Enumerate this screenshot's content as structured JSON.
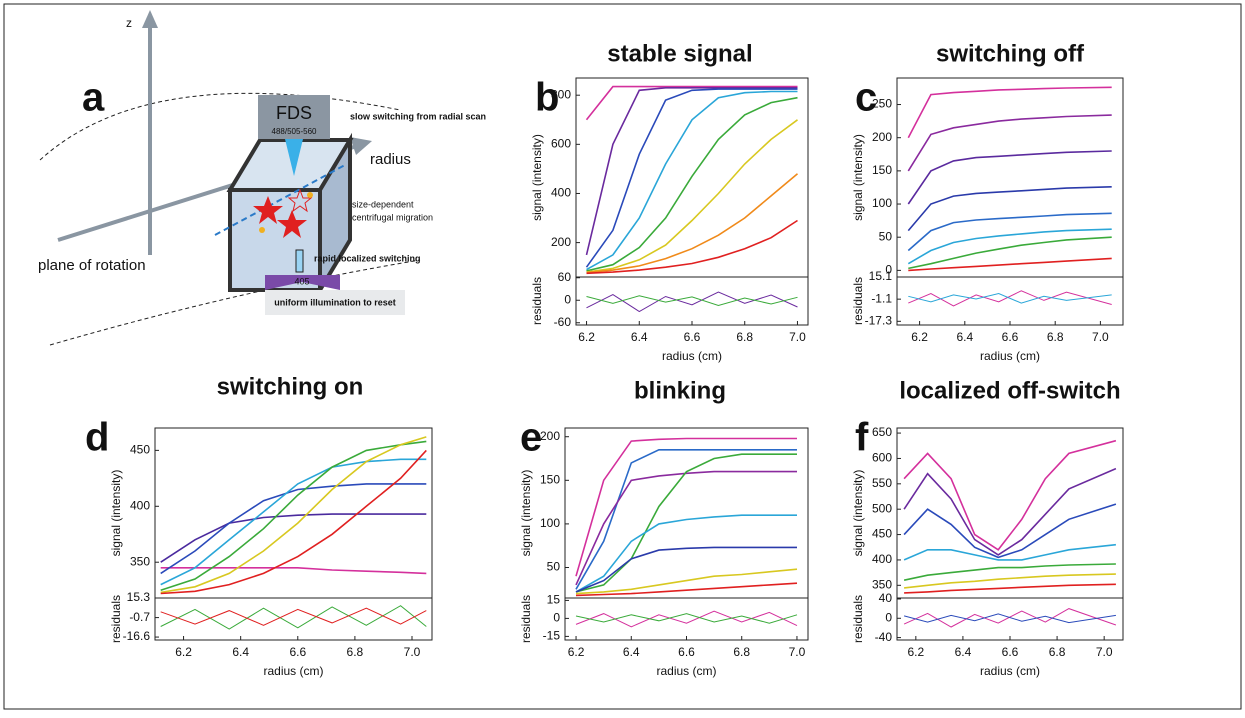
{
  "diagram": {
    "label": "a",
    "z": "z",
    "fds": "FDS",
    "wavelengths": "488/505-560",
    "slow": "slow switching from radial scan",
    "radius": "radius",
    "size1": "size-dependent",
    "size2": "centrifugal migration",
    "rapid": "rapid localized switching",
    "laser": "405",
    "uniform": "uniform illumination to reset",
    "plane": "plane of rotation"
  },
  "chart_data": [
    {
      "type": "line",
      "panel_label": "b",
      "title": "stable signal",
      "xlabel": "radius (cm)",
      "ylabel": "signal (intensity)",
      "residual_label": "residuals",
      "x": [
        6.2,
        6.3,
        6.4,
        6.5,
        6.6,
        6.7,
        6.8,
        6.9,
        7.0
      ],
      "xlim": [
        6.16,
        7.04
      ],
      "xticks": [
        6.2,
        6.4,
        6.6,
        6.8,
        {
          "value": 7,
          "label": "7.0"
        }
      ],
      "ylim": [
        60,
        870
      ],
      "yticks": [
        200,
        400,
        600,
        800
      ],
      "series": [
        {
          "color": "#d4309c",
          "values": [
            700,
            835,
            835,
            835,
            835,
            835,
            835,
            835,
            835
          ]
        },
        {
          "color": "#6a2a9e",
          "values": [
            150,
            600,
            820,
            830,
            830,
            830,
            830,
            830,
            830
          ]
        },
        {
          "color": "#2a4aba",
          "values": [
            100,
            250,
            560,
            780,
            820,
            825,
            825,
            825,
            825
          ]
        },
        {
          "color": "#2aa6d8",
          "values": [
            90,
            150,
            300,
            520,
            700,
            790,
            810,
            815,
            815
          ]
        },
        {
          "color": "#3aaa3a",
          "values": [
            85,
            110,
            180,
            300,
            470,
            620,
            720,
            770,
            790
          ]
        },
        {
          "color": "#d8c820",
          "values": [
            80,
            95,
            130,
            190,
            290,
            400,
            520,
            620,
            700
          ]
        },
        {
          "color": "#f08a1a",
          "values": [
            78,
            88,
            105,
            135,
            175,
            230,
            300,
            390,
            480
          ]
        },
        {
          "color": "#e02020",
          "values": [
            75,
            80,
            88,
            100,
            115,
            140,
            175,
            220,
            290
          ]
        }
      ],
      "residual_ylim": [
        -66,
        62
      ],
      "residual_yticks": [
        60,
        0,
        -60
      ],
      "residuals": [
        {
          "color": "#6a2a9e",
          "values": [
            -20,
            15,
            -30,
            10,
            -12,
            22,
            -8,
            14,
            -18
          ]
        },
        {
          "color": "#3aaa3a",
          "values": [
            10,
            -8,
            12,
            -5,
            9,
            -14,
            6,
            -10,
            8
          ]
        }
      ]
    },
    {
      "type": "line",
      "panel_label": "c",
      "title": "switching off",
      "xlabel": "radius (cm)",
      "ylabel": "signal (intensity)",
      "residual_label": "residuals",
      "x": [
        6.15,
        6.25,
        6.35,
        6.45,
        6.55,
        6.65,
        6.75,
        6.85,
        7.05
      ],
      "xlim": [
        6.1,
        7.1
      ],
      "xticks": [
        6.2,
        6.4,
        6.6,
        6.8,
        {
          "value": 7,
          "label": "7.0"
        }
      ],
      "ylim": [
        -10,
        290
      ],
      "yticks": [
        0,
        50,
        100,
        150,
        200,
        250
      ],
      "series": [
        {
          "color": "#d4309c",
          "values": [
            200,
            265,
            268,
            270,
            272,
            273,
            274,
            275,
            276
          ]
        },
        {
          "color": "#8a2a9e",
          "values": [
            150,
            205,
            215,
            220,
            225,
            228,
            230,
            232,
            234
          ]
        },
        {
          "color": "#5a2a9e",
          "values": [
            100,
            150,
            165,
            170,
            172,
            174,
            176,
            178,
            180
          ]
        },
        {
          "color": "#2a3aaa",
          "values": [
            60,
            100,
            112,
            116,
            118,
            120,
            122,
            124,
            126
          ]
        },
        {
          "color": "#2a6ac8",
          "values": [
            30,
            60,
            72,
            76,
            78,
            80,
            82,
            84,
            86
          ]
        },
        {
          "color": "#2aa6d8",
          "values": [
            10,
            30,
            42,
            48,
            52,
            55,
            58,
            60,
            62
          ]
        },
        {
          "color": "#3aaa3a",
          "values": [
            3,
            10,
            18,
            26,
            32,
            38,
            42,
            46,
            50
          ]
        },
        {
          "color": "#e02020",
          "values": [
            0,
            2,
            4,
            6,
            8,
            10,
            12,
            14,
            18
          ]
        }
      ],
      "residual_ylim": [
        -20,
        15.1
      ],
      "residual_yticks": [
        15.1,
        -1.1,
        -17.3
      ],
      "residuals": [
        {
          "color": "#d4309c",
          "values": [
            -4,
            3,
            -6,
            2,
            -3,
            5,
            -2,
            4,
            -5
          ]
        },
        {
          "color": "#2aa6d8",
          "values": [
            1,
            -3,
            2,
            -1,
            3,
            -4,
            1,
            -2,
            2
          ]
        }
      ]
    },
    {
      "type": "line",
      "panel_label": "d",
      "title": "switching on",
      "xlabel": "radius (cm)",
      "ylabel": "signal (intensity)",
      "residual_label": "residuals",
      "x": [
        6.12,
        6.24,
        6.36,
        6.48,
        6.6,
        6.72,
        6.84,
        6.96,
        7.05
      ],
      "xlim": [
        6.1,
        7.07
      ],
      "xticks": [
        6.2,
        6.4,
        6.6,
        6.8,
        {
          "value": 7,
          "label": "7.0"
        }
      ],
      "ylim": [
        318,
        470
      ],
      "yticks": [
        350,
        400,
        450
      ],
      "series": [
        {
          "color": "#d4309c",
          "values": [
            345,
            345,
            345,
            345,
            345,
            343,
            342,
            341,
            340
          ]
        },
        {
          "color": "#4a2a9e",
          "values": [
            350,
            370,
            385,
            390,
            392,
            393,
            393,
            393,
            393
          ]
        },
        {
          "color": "#2a4aba",
          "values": [
            340,
            360,
            385,
            405,
            415,
            418,
            420,
            420,
            420
          ]
        },
        {
          "color": "#2aa6d8",
          "values": [
            330,
            345,
            370,
            395,
            420,
            435,
            440,
            442,
            442
          ]
        },
        {
          "color": "#3aaa3a",
          "values": [
            325,
            335,
            355,
            380,
            410,
            435,
            450,
            455,
            458
          ]
        },
        {
          "color": "#d8c820",
          "values": [
            323,
            328,
            340,
            360,
            385,
            415,
            440,
            455,
            462
          ]
        },
        {
          "color": "#e02020",
          "values": [
            322,
            324,
            330,
            340,
            355,
            375,
            400,
            425,
            450
          ]
        }
      ],
      "residual_ylim": [
        -19,
        15.3
      ],
      "residual_yticks": [
        15.3,
        -0.7,
        -16.6
      ],
      "residuals": [
        {
          "color": "#3aaa3a",
          "values": [
            -8,
            6,
            -10,
            7,
            -9,
            8,
            -7,
            9,
            -8
          ]
        },
        {
          "color": "#e02020",
          "values": [
            4,
            -6,
            5,
            -7,
            6,
            -5,
            7,
            -6,
            5
          ]
        }
      ]
    },
    {
      "type": "line",
      "panel_label": "e",
      "title": "blinking",
      "xlabel": "radius (cm)",
      "ylabel": "signal (intensity)",
      "residual_label": "residuals",
      "x": [
        6.2,
        6.3,
        6.4,
        6.5,
        6.6,
        6.7,
        6.8,
        6.9,
        7.0
      ],
      "xlim": [
        6.16,
        7.04
      ],
      "xticks": [
        6.2,
        6.4,
        6.6,
        6.8,
        {
          "value": 7,
          "label": "7.0"
        }
      ],
      "ylim": [
        15,
        210
      ],
      "yticks": [
        50,
        100,
        150,
        200
      ],
      "series": [
        {
          "color": "#d4309c",
          "values": [
            40,
            150,
            195,
            197,
            198,
            198,
            198,
            198,
            198
          ]
        },
        {
          "color": "#2a6ac8",
          "values": [
            25,
            80,
            170,
            185,
            185,
            185,
            185,
            185,
            185
          ]
        },
        {
          "color": "#8a2a9e",
          "values": [
            30,
            100,
            150,
            155,
            158,
            160,
            160,
            160,
            160
          ]
        },
        {
          "color": "#3aaa3a",
          "values": [
            22,
            30,
            60,
            120,
            160,
            175,
            180,
            180,
            180
          ]
        },
        {
          "color": "#2aa6d8",
          "values": [
            22,
            40,
            80,
            100,
            105,
            108,
            110,
            110,
            110
          ]
        },
        {
          "color": "#2a3aaa",
          "values": [
            22,
            35,
            60,
            70,
            72,
            73,
            73,
            73,
            73
          ]
        },
        {
          "color": "#d8c820",
          "values": [
            20,
            22,
            25,
            30,
            35,
            40,
            42,
            45,
            48
          ]
        },
        {
          "color": "#e02020",
          "values": [
            18,
            19,
            20,
            22,
            24,
            26,
            28,
            30,
            32
          ]
        }
      ],
      "residual_ylim": [
        -18,
        17
      ],
      "residual_yticks": [
        15,
        0,
        -15
      ],
      "residuals": [
        {
          "color": "#d4309c",
          "values": [
            -5,
            4,
            -7,
            3,
            -4,
            6,
            -3,
            5,
            -6
          ]
        },
        {
          "color": "#3aaa3a",
          "values": [
            2,
            -3,
            3,
            -2,
            4,
            -3,
            2,
            -4,
            3
          ]
        }
      ]
    },
    {
      "type": "line",
      "panel_label": "f",
      "title": "localized off-switch",
      "xlabel": "radius (cm)",
      "ylabel": "signal (intensity)",
      "residual_label": "residuals",
      "x": [
        6.15,
        6.25,
        6.35,
        6.45,
        6.55,
        6.65,
        6.75,
        6.85,
        7.05
      ],
      "xlim": [
        6.12,
        7.08
      ],
      "xticks": [
        6.2,
        6.4,
        6.6,
        6.8,
        {
          "value": 7,
          "label": "7.0"
        }
      ],
      "ylim": [
        325,
        660
      ],
      "yticks": [
        350,
        400,
        450,
        500,
        550,
        600,
        650
      ],
      "series": [
        {
          "color": "#d4309c",
          "values": [
            560,
            610,
            560,
            450,
            420,
            480,
            560,
            610,
            635
          ]
        },
        {
          "color": "#6a2a9e",
          "values": [
            500,
            570,
            520,
            440,
            410,
            440,
            490,
            540,
            580
          ]
        },
        {
          "color": "#2a4aba",
          "values": [
            450,
            500,
            470,
            425,
            405,
            420,
            450,
            480,
            510
          ]
        },
        {
          "color": "#2aa6d8",
          "values": [
            400,
            420,
            420,
            410,
            400,
            400,
            410,
            420,
            430
          ]
        },
        {
          "color": "#3aaa3a",
          "values": [
            360,
            370,
            375,
            380,
            385,
            385,
            388,
            390,
            392
          ]
        },
        {
          "color": "#d8c820",
          "values": [
            345,
            350,
            355,
            358,
            362,
            365,
            368,
            370,
            372
          ]
        },
        {
          "color": "#e02020",
          "values": [
            335,
            337,
            340,
            342,
            344,
            346,
            348,
            350,
            352
          ]
        }
      ],
      "residual_ylim": [
        -45,
        42
      ],
      "residual_yticks": [
        40,
        0,
        -40
      ],
      "residuals": [
        {
          "color": "#d4309c",
          "values": [
            -12,
            10,
            -18,
            8,
            -10,
            15,
            -8,
            20,
            -14
          ]
        },
        {
          "color": "#2a4aba",
          "values": [
            5,
            -8,
            6,
            -5,
            9,
            -6,
            4,
            -9,
            6
          ]
        }
      ]
    }
  ]
}
